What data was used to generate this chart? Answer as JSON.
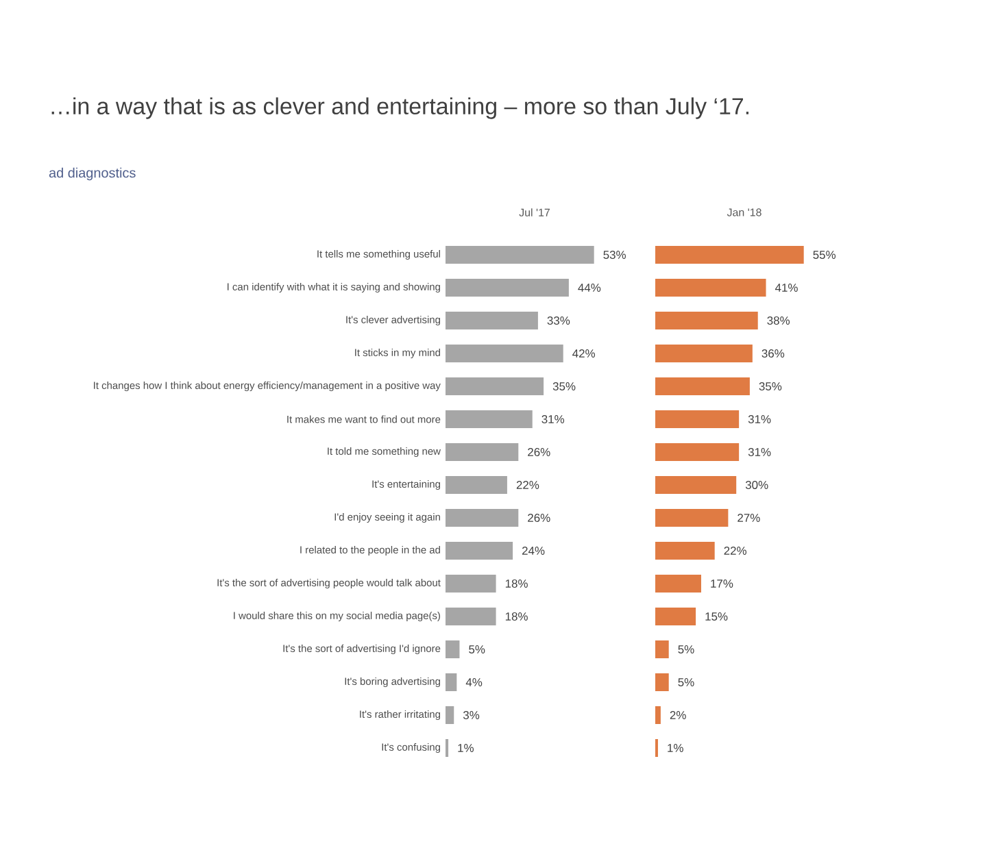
{
  "chart_data": [
    {
      "type": "bar",
      "orientation": "horizontal",
      "title": "…in a way that is as clever and entertaining – more so than July ‘17.",
      "subtitle": "ad diagnostics",
      "tick_labels": "y",
      "categories": [
        "It tells me something useful",
        "I can identify with what it is saying and showing",
        "It's clever advertising",
        "It sticks in my mind",
        "It changes how I think about energy efficiency/management in a positive way",
        "It makes me want to find out more",
        "It told me something new",
        "It's entertaining",
        "I'd enjoy seeing it again",
        "I related to the people in the ad",
        "It's the sort of advertising people would talk about",
        "I would share this on my social media page(s)",
        "It's the sort of advertising I'd ignore",
        "It's boring advertising",
        "It's rather irritating",
        "It's confusing"
      ],
      "series": [
        {
          "name": "Jul '17",
          "color": "#a6a6a6",
          "values": [
            53,
            44,
            33,
            42,
            35,
            31,
            26,
            22,
            26,
            24,
            18,
            18,
            5,
            4,
            3,
            1
          ],
          "value_labels": [
            "53%",
            "44%",
            "33%",
            "42%",
            "35%",
            "31%",
            "26%",
            "22%",
            "26%",
            "24%",
            "18%",
            "18%",
            "5%",
            "4%",
            "3%",
            "1%"
          ]
        }
      ]
    },
    {
      "type": "bar",
      "orientation": "horizontal",
      "tick_labels": false,
      "categories": [
        null,
        null,
        null,
        null,
        null,
        null,
        null,
        null,
        null,
        null,
        null,
        null,
        null,
        null,
        null,
        null
      ],
      "series": [
        {
          "name": "Jan '18",
          "color": "#e07b43",
          "values": [
            55,
            41,
            38,
            36,
            35,
            31,
            31,
            30,
            27,
            22,
            17,
            15,
            5,
            5,
            2,
            1
          ],
          "value_labels": [
            "55%",
            "41%",
            "38%",
            "36%",
            "35%",
            "31%",
            "31%",
            "30%",
            "27%",
            "22%",
            "17%",
            "15%",
            "5%",
            "5%",
            "2%",
            "1%"
          ]
        }
      ]
    }
  ]
}
